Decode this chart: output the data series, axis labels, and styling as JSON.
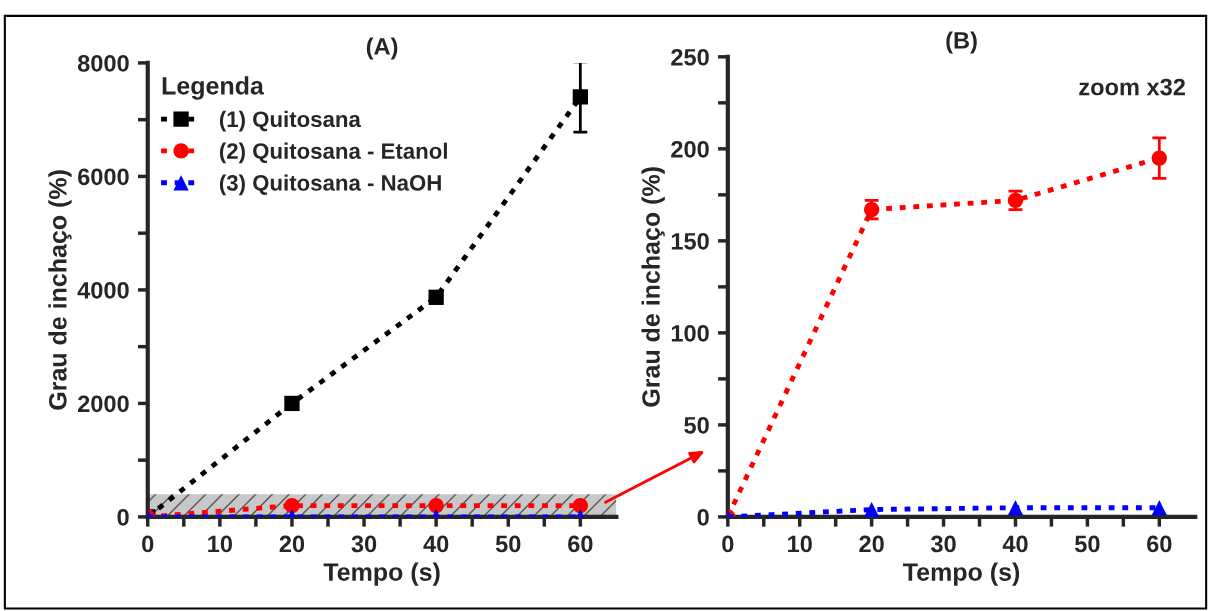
{
  "chart_data": [
    {
      "type": "line",
      "title": "(A)",
      "xlabel": "Tempo (s)",
      "ylabel": "Grau de inchaço (%)",
      "legend_title": "Legenda",
      "legend": "top left",
      "line_style": "dotted",
      "x": [
        0,
        20,
        40,
        60
      ],
      "series": [
        {
          "name": "(1) Quitosana",
          "color": "#000000",
          "marker": "square",
          "values": [
            0,
            2000,
            3870,
            7400
          ],
          "errors": [
            null,
            100,
            100,
            620
          ]
        },
        {
          "name": "(2) Quitosana - Etanol",
          "color": "#ff0000",
          "marker": "circle",
          "values": [
            0,
            200,
            200,
            200
          ]
        },
        {
          "name": "(3) Quitosana - NaOH",
          "color": "#0000ff",
          "marker": "triangle",
          "values": [
            0,
            0,
            0,
            0
          ]
        }
      ],
      "bands": [
        {
          "axis": "y",
          "from": 0,
          "to": 400,
          "color": "#c8c8c8"
        }
      ],
      "xlim": [
        0,
        65
      ],
      "xticks": [
        0,
        {
          "value": 5,
          "label": null
        },
        10,
        {
          "value": 15,
          "label": null
        },
        20,
        {
          "value": 25,
          "label": null
        },
        30,
        {
          "value": 35,
          "label": null
        },
        40,
        {
          "value": 45,
          "label": null
        },
        50,
        {
          "value": 55,
          "label": null
        },
        60
      ],
      "ylim": [
        0,
        8000
      ],
      "yticks": [
        0,
        {
          "value": 1000,
          "label": null
        },
        2000,
        {
          "value": 3000,
          "label": null
        },
        4000,
        {
          "value": 5000,
          "label": null
        },
        6000,
        {
          "value": 7000,
          "label": null
        },
        8000
      ]
    },
    {
      "type": "line",
      "title": "(B)",
      "xlabel": "Tempo (s)",
      "ylabel": "Grau de inchaço (%)",
      "line_style": "dotted",
      "annotations": [
        "zoom x32"
      ],
      "x": [
        0,
        20,
        40,
        60
      ],
      "series": [
        {
          "color": "#ff0000",
          "marker": "circle",
          "values": [
            0,
            167,
            172,
            195
          ],
          "errors": [
            null,
            5,
            5,
            11
          ]
        },
        {
          "color": "#0000ff",
          "marker": "triangle",
          "values": [
            0,
            4,
            5,
            5
          ]
        }
      ],
      "xlim": [
        0,
        65
      ],
      "xticks": [
        0,
        {
          "value": 5,
          "label": null
        },
        10,
        {
          "value": 15,
          "label": null
        },
        20,
        {
          "value": 25,
          "label": null
        },
        30,
        {
          "value": 35,
          "label": null
        },
        40,
        {
          "value": 45,
          "label": null
        },
        50,
        {
          "value": 55,
          "label": null
        },
        60
      ],
      "ylim": [
        0,
        250
      ],
      "yticks": [
        0,
        {
          "value": 25,
          "label": null
        },
        50,
        {
          "value": 75,
          "label": null
        },
        100,
        {
          "value": 125,
          "label": null
        },
        150,
        {
          "value": 175,
          "label": null
        },
        200,
        {
          "value": 225,
          "label": null
        },
        250
      ]
    }
  ]
}
